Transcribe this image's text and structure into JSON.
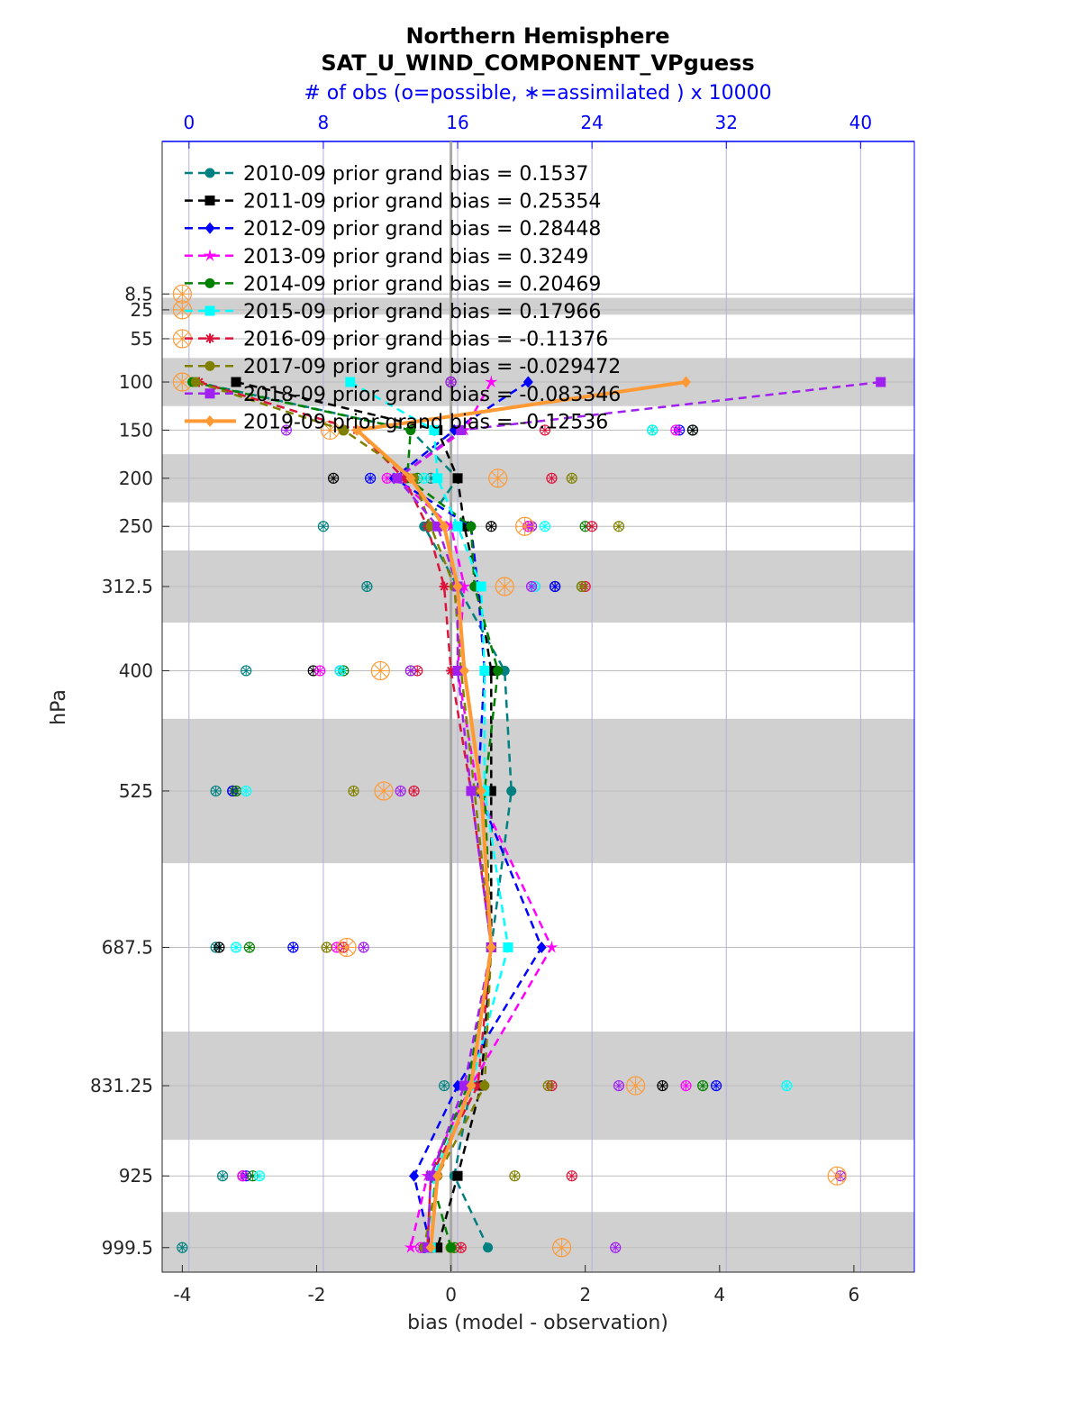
{
  "chart_data": {
    "type": "line",
    "title": "Northern Hemisphere",
    "subtitle": "SAT_U_WIND_COMPONENT_VPguess",
    "top_axis_label": "# of obs (o=possible, ∗=assimilated ) x 10000",
    "xlabel": "bias (model - observation)",
    "ylabel": "hPa",
    "xlim": [
      -4.3,
      6.9
    ],
    "xticks": [
      -4,
      -2,
      0,
      2,
      4,
      6
    ],
    "xtick_labels": [
      "-4",
      "-2",
      "0",
      "2",
      "4",
      "6"
    ],
    "top_xlim": [
      -1.6,
      43.2
    ],
    "top_xticks": [
      0,
      8,
      16,
      24,
      32,
      40
    ],
    "top_xtick_labels": [
      "0",
      "8",
      "16",
      "24",
      "32",
      "40"
    ],
    "y_scale": "linear, inverted (pressure)",
    "ylim": [
      1025,
      -150
    ],
    "levels": [
      8.5,
      25,
      55,
      100,
      150,
      200,
      250,
      312.5,
      400,
      525,
      687.5,
      831.25,
      925,
      999.5
    ],
    "ytick_labels": [
      "8.5",
      "25",
      "55",
      "100",
      "150",
      "200",
      "250",
      "312.5",
      "400",
      "525",
      "687.5",
      "831.25",
      "925",
      "999.5"
    ],
    "shaded_layers_hPa": [
      [
        12.5,
        30
      ],
      [
        75,
        125
      ],
      [
        175,
        225
      ],
      [
        275,
        350
      ],
      [
        450,
        600
      ],
      [
        775,
        887.5
      ],
      [
        962.5,
        1025
      ]
    ],
    "grid": true,
    "legend_location": "upper-left",
    "series": [
      {
        "name": "2010-09 prior grand bias = 0.1537",
        "color": "#008080",
        "marker": "circle",
        "style": "dashed",
        "points": [
          [
            -3.8,
            100
          ],
          [
            -0.6,
            150
          ],
          [
            0.1,
            200
          ],
          [
            -0.4,
            250
          ],
          [
            0.1,
            312.5
          ],
          [
            0.8,
            400
          ],
          [
            0.9,
            525
          ],
          [
            0.6,
            687.5
          ],
          [
            0.3,
            831.25
          ],
          [
            0.05,
            925
          ],
          [
            0.55,
            999.5
          ]
        ]
      },
      {
        "name": "2011-09 prior grand bias = 0.25354",
        "color": "#000000",
        "marker": "square",
        "style": "dashed",
        "points": [
          [
            -3.2,
            100
          ],
          [
            -0.2,
            150
          ],
          [
            0.1,
            200
          ],
          [
            0.2,
            250
          ],
          [
            0.4,
            312.5
          ],
          [
            0.6,
            400
          ],
          [
            0.6,
            525
          ],
          [
            0.6,
            687.5
          ],
          [
            0.45,
            831.25
          ],
          [
            0.1,
            925
          ],
          [
            -0.2,
            999.5
          ]
        ]
      },
      {
        "name": "2012-09 prior grand bias = 0.28448",
        "color": "#0000ff",
        "marker": "diamond",
        "style": "dashed",
        "points": [
          [
            1.15,
            100
          ],
          [
            0.05,
            150
          ],
          [
            -0.85,
            200
          ],
          [
            0.3,
            250
          ],
          [
            0.4,
            312.5
          ],
          [
            0.5,
            400
          ],
          [
            0.4,
            525
          ],
          [
            1.35,
            687.5
          ],
          [
            0.1,
            831.25
          ],
          [
            -0.55,
            925
          ],
          [
            -0.3,
            999.5
          ]
        ]
      },
      {
        "name": "2013-09 prior grand bias = 0.3249",
        "color": "#ff00ff",
        "marker": "star",
        "style": "dashed",
        "points": [
          [
            0.6,
            100
          ],
          [
            0.2,
            150
          ],
          [
            -0.8,
            200
          ],
          [
            0.0,
            250
          ],
          [
            0.2,
            312.5
          ],
          [
            0.1,
            400
          ],
          [
            0.4,
            525
          ],
          [
            1.5,
            687.5
          ],
          [
            0.3,
            831.25
          ],
          [
            -0.35,
            925
          ],
          [
            -0.6,
            999.5
          ]
        ]
      },
      {
        "name": "2014-09 prior grand bias = 0.20469",
        "color": "#008000",
        "marker": "hexagram",
        "style": "dashed",
        "points": [
          [
            -3.85,
            100
          ],
          [
            -0.6,
            150
          ],
          [
            -0.65,
            200
          ],
          [
            0.3,
            250
          ],
          [
            0.35,
            312.5
          ],
          [
            0.7,
            400
          ],
          [
            0.5,
            525
          ],
          [
            0.6,
            687.5
          ],
          [
            0.25,
            831.25
          ],
          [
            -0.3,
            925
          ],
          [
            0.0,
            999.5
          ]
        ]
      },
      {
        "name": "2015-09 prior grand bias = 0.17966",
        "color": "#00ffff",
        "marker": "square",
        "style": "dashed",
        "points": [
          [
            -1.5,
            100
          ],
          [
            -0.25,
            150
          ],
          [
            -0.2,
            200
          ],
          [
            0.1,
            250
          ],
          [
            0.45,
            312.5
          ],
          [
            0.5,
            400
          ],
          [
            0.5,
            525
          ],
          [
            0.85,
            687.5
          ],
          [
            0.3,
            831.25
          ],
          [
            -0.25,
            925
          ],
          [
            -0.3,
            999.5
          ]
        ]
      },
      {
        "name": "2016-09 prior grand bias = -0.11376",
        "color": "#dc143c",
        "marker": "asterisk",
        "style": "dashed",
        "points": [
          [
            -3.75,
            100
          ],
          [
            -1.4,
            150
          ],
          [
            -0.7,
            200
          ],
          [
            -0.35,
            250
          ],
          [
            -0.1,
            312.5
          ],
          [
            0.0,
            400
          ],
          [
            0.3,
            525
          ],
          [
            0.6,
            687.5
          ],
          [
            0.4,
            831.25
          ],
          [
            -0.3,
            925
          ],
          [
            -0.35,
            999.5
          ]
        ]
      },
      {
        "name": "2017-09 prior grand bias = -0.029472",
        "color": "#808000",
        "marker": "circle",
        "style": "dashed",
        "points": [
          [
            -3.8,
            100
          ],
          [
            -1.6,
            150
          ],
          [
            -0.55,
            200
          ],
          [
            -0.3,
            250
          ],
          [
            0.05,
            312.5
          ],
          [
            0.15,
            400
          ],
          [
            0.35,
            525
          ],
          [
            0.6,
            687.5
          ],
          [
            0.5,
            831.25
          ],
          [
            -0.2,
            925
          ],
          [
            -0.4,
            999.5
          ]
        ]
      },
      {
        "name": "2018-09 prior grand bias = -0.083346",
        "color": "#a020f0",
        "marker": "square",
        "style": "dashed",
        "points": [
          [
            6.4,
            100
          ],
          [
            0.15,
            150
          ],
          [
            -0.8,
            200
          ],
          [
            -0.2,
            250
          ],
          [
            0.1,
            312.5
          ],
          [
            0.1,
            400
          ],
          [
            0.3,
            525
          ],
          [
            0.6,
            687.5
          ],
          [
            0.2,
            831.25
          ],
          [
            -0.3,
            925
          ],
          [
            -0.35,
            999.5
          ]
        ]
      },
      {
        "name": "2019-09 prior grand bias = -0.12536",
        "color": "#ff9933",
        "marker": "diamond",
        "style": "solid",
        "points": [
          [
            3.5,
            100
          ],
          [
            -1.4,
            150
          ],
          [
            -0.6,
            200
          ],
          [
            -0.1,
            250
          ],
          [
            0.1,
            312.5
          ],
          [
            0.2,
            400
          ],
          [
            0.45,
            525
          ],
          [
            0.6,
            687.5
          ],
          [
            0.3,
            831.25
          ],
          [
            -0.2,
            925
          ],
          [
            -0.3,
            999.5
          ]
        ]
      }
    ],
    "obs_counts_x10000": {
      "note_markers": "o=possible, *=assimilated",
      "series": [
        {
          "color": "#008080",
          "values": [
            [
              0,
              100
            ],
            [
              3.6,
              150
            ],
            [
              -0.3,
              200
            ],
            [
              -1.9,
              250
            ],
            [
              -1.25,
              312.5
            ],
            [
              -3.05,
              400
            ],
            [
              -3.5,
              525
            ],
            [
              -3.5,
              687.5
            ],
            [
              -0.1,
              831.25
            ],
            [
              -3.4,
              925
            ],
            [
              -4.0,
              999.5
            ]
          ]
        },
        {
          "color": "#000000",
          "values": [
            [
              0,
              100
            ],
            [
              3.6,
              150
            ],
            [
              -1.75,
              200
            ],
            [
              0.6,
              250
            ],
            [
              1.55,
              312.5
            ],
            [
              -2.05,
              400
            ],
            [
              -3.25,
              525
            ],
            [
              -3.45,
              687.5
            ],
            [
              3.15,
              831.25
            ],
            [
              -3.1,
              925
            ],
            [
              -0.3,
              999.5
            ]
          ]
        },
        {
          "color": "#0000ff",
          "values": [
            [
              0,
              100
            ],
            [
              3.4,
              150
            ],
            [
              -1.2,
              200
            ],
            [
              1.15,
              250
            ],
            [
              1.55,
              312.5
            ],
            [
              -1.65,
              400
            ],
            [
              -3.25,
              525
            ],
            [
              -2.35,
              687.5
            ],
            [
              3.95,
              831.25
            ],
            [
              -3.05,
              925
            ],
            [
              -0.4,
              999.5
            ]
          ]
        },
        {
          "color": "#ff00ff",
          "values": [
            [
              0,
              100
            ],
            [
              3.35,
              150
            ],
            [
              -0.95,
              200
            ],
            [
              1.15,
              250
            ],
            [
              1.25,
              312.5
            ],
            [
              -1.95,
              400
            ],
            [
              -3.2,
              525
            ],
            [
              -1.7,
              687.5
            ],
            [
              3.5,
              831.25
            ],
            [
              -3.1,
              925
            ],
            [
              -0.45,
              999.5
            ]
          ]
        },
        {
          "color": "#008000",
          "values": [
            [
              0,
              100
            ],
            [
              3.0,
              150
            ],
            [
              -0.5,
              200
            ],
            [
              2.0,
              250
            ],
            [
              1.95,
              312.5
            ],
            [
              -1.6,
              400
            ],
            [
              -3.2,
              525
            ],
            [
              -3.0,
              687.5
            ],
            [
              3.75,
              831.25
            ],
            [
              -2.95,
              925
            ],
            [
              0.05,
              999.5
            ]
          ]
        },
        {
          "color": "#00ffff",
          "values": [
            [
              0,
              100
            ],
            [
              3.0,
              150
            ],
            [
              -0.4,
              200
            ],
            [
              1.4,
              250
            ],
            [
              1.25,
              312.5
            ],
            [
              -1.65,
              400
            ],
            [
              -3.05,
              525
            ],
            [
              -3.2,
              687.5
            ],
            [
              5.0,
              831.25
            ],
            [
              -2.85,
              925
            ],
            [
              -0.3,
              999.5
            ]
          ]
        },
        {
          "color": "#dc143c",
          "values": [
            [
              0,
              100
            ],
            [
              1.4,
              150
            ],
            [
              1.5,
              200
            ],
            [
              2.1,
              250
            ],
            [
              2.0,
              312.5
            ],
            [
              -0.5,
              400
            ],
            [
              -0.55,
              525
            ],
            [
              -1.6,
              687.5
            ],
            [
              1.5,
              831.25
            ],
            [
              1.8,
              925
            ],
            [
              0.15,
              999.5
            ]
          ]
        },
        {
          "color": "#808000",
          "values": [
            [
              0,
              100
            ],
            [
              -1.6,
              150
            ],
            [
              1.8,
              200
            ],
            [
              2.5,
              250
            ],
            [
              1.95,
              312.5
            ],
            [
              -0.6,
              400
            ],
            [
              -1.45,
              525
            ],
            [
              -1.85,
              687.5
            ],
            [
              1.45,
              831.25
            ],
            [
              0.95,
              925
            ],
            [
              0.0,
              999.5
            ]
          ]
        },
        {
          "color": "#a020f0",
          "values": [
            [
              0,
              100
            ],
            [
              -2.45,
              150
            ],
            [
              -0.75,
              200
            ],
            [
              1.2,
              250
            ],
            [
              1.2,
              312.5
            ],
            [
              -0.6,
              400
            ],
            [
              -0.75,
              525
            ],
            [
              -1.3,
              687.5
            ],
            [
              2.5,
              831.25
            ],
            [
              5.8,
              925
            ],
            [
              2.45,
              999.5
            ]
          ]
        },
        {
          "color": "#ff9933",
          "values": [
            [
              -4.0,
              8.5
            ],
            [
              -4.0,
              25
            ],
            [
              -4.0,
              55
            ],
            [
              -4.0,
              100
            ],
            [
              -1.8,
              150
            ],
            [
              0.7,
              200
            ],
            [
              1.1,
              250
            ],
            [
              0.8,
              312.5
            ],
            [
              -1.05,
              400
            ],
            [
              -1.0,
              525
            ],
            [
              -1.55,
              687.5
            ],
            [
              2.75,
              831.25
            ],
            [
              5.75,
              925
            ],
            [
              1.65,
              999.5
            ]
          ]
        }
      ]
    }
  }
}
